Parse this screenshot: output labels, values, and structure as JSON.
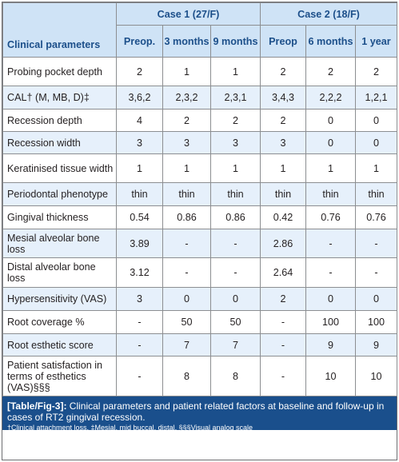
{
  "table": {
    "header": {
      "param_label": "Clinical parameters",
      "case1": "Case 1 (27/F)",
      "case2": "Case 2 (18/F)",
      "sub": [
        "Preop.",
        "3 months",
        "9 months",
        "Preop",
        "6 months",
        "1 year"
      ]
    },
    "rows": [
      {
        "label": "Probing pocket depth",
        "values": [
          "2",
          "1",
          "1",
          "2",
          "2",
          "2"
        ]
      },
      {
        "label": "CAL† (M, MB, D)‡",
        "values": [
          "3,6,2",
          "2,3,2",
          "2,3,1",
          "3,4,3",
          "2,2,2",
          "1,2,1"
        ]
      },
      {
        "label": "Recession depth",
        "values": [
          "4",
          "2",
          "2",
          "2",
          "0",
          "0"
        ]
      },
      {
        "label": "Recession width",
        "values": [
          "3",
          "3",
          "3",
          "3",
          "0",
          "0"
        ]
      },
      {
        "label": "Keratinised tissue width",
        "values": [
          "1",
          "1",
          "1",
          "1",
          "1",
          "1"
        ]
      },
      {
        "label": "Periodontal phenotype",
        "values": [
          "thin",
          "thin",
          "thin",
          "thin",
          "thin",
          "thin"
        ]
      },
      {
        "label": "Gingival thickness",
        "values": [
          "0.54",
          "0.86",
          "0.86",
          "0.42",
          "0.76",
          "0.76"
        ]
      },
      {
        "label": "Mesial alveolar bone loss",
        "values": [
          "3.89",
          "-",
          "-",
          "2.86",
          "-",
          "-"
        ]
      },
      {
        "label": "Distal alveolar bone loss",
        "values": [
          "3.12",
          "-",
          "-",
          "2.64",
          "-",
          "-"
        ]
      },
      {
        "label": "Hypersensitivity (VAS)",
        "values": [
          "3",
          "0",
          "0",
          "2",
          "0",
          "0"
        ]
      },
      {
        "label": "Root coverage %",
        "values": [
          "-",
          "50",
          "50",
          "-",
          "100",
          "100"
        ]
      },
      {
        "label": "Root esthetic score",
        "values": [
          "-",
          "7",
          "7",
          "-",
          "9",
          "9"
        ]
      },
      {
        "label": "Patient satisfaction in terms of esthetics (VAS)§§§",
        "values": [
          "-",
          "8",
          "8",
          "-",
          "10",
          "10"
        ]
      }
    ]
  },
  "caption": {
    "label": "[Table/Fig-3]:",
    "text": " Clinical parameters and patient related factors at baseline and follow-up in cases of RT2 gingival recession.",
    "footnote": "†Clinical attachment loss, ‡Mesial, mid buccal, distal, §§§Visual analog scale"
  },
  "colors": {
    "header_bg": "#cfe3f6",
    "header_text": "#1c4f8a",
    "row_shade": "#e6f0fb",
    "caption_bg": "#1a4f8c"
  }
}
